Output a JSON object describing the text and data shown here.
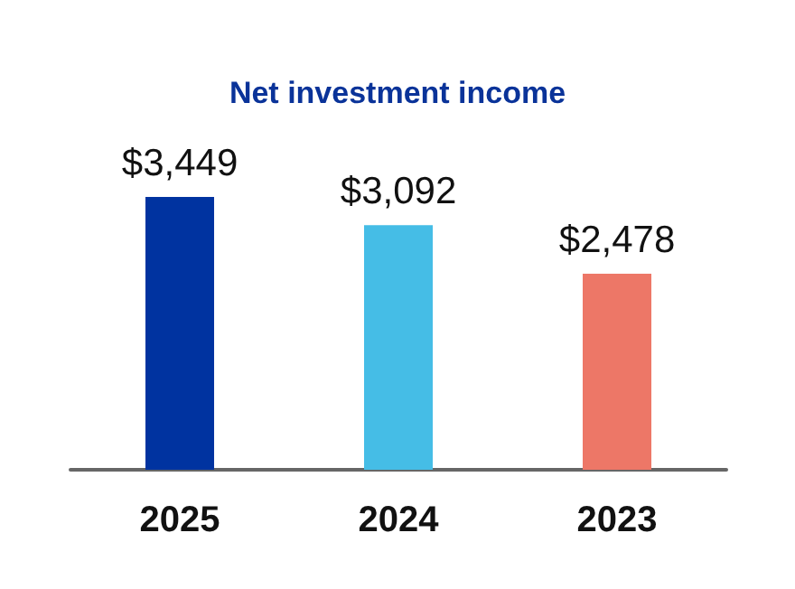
{
  "chart_data": {
    "type": "bar",
    "title": "Net investment income",
    "categories": [
      "2025",
      "2024",
      "2023"
    ],
    "values": [
      3449,
      3092,
      2478
    ],
    "colors": [
      "#0033a0",
      "#45bde6",
      "#ed7767"
    ],
    "value_labels": [
      "$3,449",
      "$3,092",
      "$2,478"
    ],
    "ylim": [
      0,
      3449
    ]
  }
}
